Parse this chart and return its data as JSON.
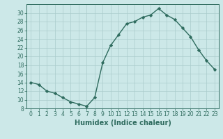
{
  "x": [
    0,
    1,
    2,
    3,
    4,
    5,
    6,
    7,
    8,
    9,
    10,
    11,
    12,
    13,
    14,
    15,
    16,
    17,
    18,
    19,
    20,
    21,
    22,
    23
  ],
  "y": [
    14,
    13.5,
    12,
    11.5,
    10.5,
    9.5,
    9,
    8.5,
    10.5,
    18.5,
    22.5,
    25,
    27.5,
    28,
    29,
    29.5,
    31,
    29.5,
    28.5,
    26.5,
    24.5,
    21.5,
    19,
    17
  ],
  "xlabel": "Humidex (Indice chaleur)",
  "xlim": [
    -0.5,
    23.5
  ],
  "ylim": [
    8,
    32
  ],
  "yticks": [
    8,
    10,
    12,
    14,
    16,
    18,
    20,
    22,
    24,
    26,
    28,
    30
  ],
  "xticks": [
    0,
    1,
    2,
    3,
    4,
    5,
    6,
    7,
    8,
    9,
    10,
    11,
    12,
    13,
    14,
    15,
    16,
    17,
    18,
    19,
    20,
    21,
    22,
    23
  ],
  "line_color": "#2e6b5e",
  "marker": "D",
  "marker_size": 2.2,
  "bg_color": "#cce8e8",
  "grid_color": "#aacccc",
  "tick_label_fontsize": 5.5,
  "xlabel_fontsize": 7.0,
  "linewidth": 1.0
}
